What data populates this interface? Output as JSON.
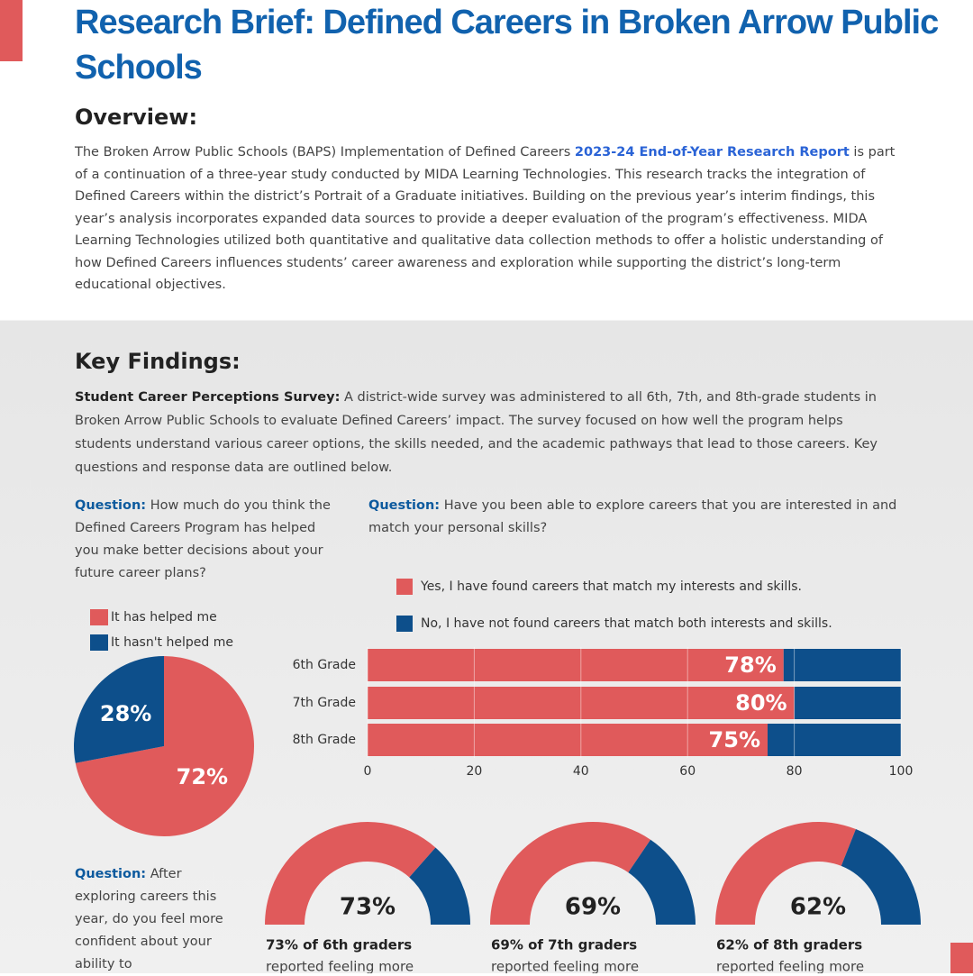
{
  "header": {
    "title": "Research Brief: Defined Careers in Broken Arrow Public Schools"
  },
  "overview": {
    "heading": "Overview:",
    "text_before_link": "The Broken Arrow Public Schools (BAPS) Implementation of Defined Careers ",
    "link": "2023-24 End-of-Year Research Report",
    "text_after_link": " is part of a continuation of a three-year study conducted by MIDA Learning Technologies. This research tracks the integration of Defined Careers within the district’s Portrait of a Graduate initiatives. Building on the previous year’s interim findings, this year’s analysis incorporates expanded data sources to provide a deeper evaluation of the program’s effectiveness. MIDA Learning Technologies utilized both quantitative and qualitative data collection methods to offer a holistic understanding of how Defined Careers influences students’ career awareness and exploration while supporting the district’s long-term educational objectives."
  },
  "key_findings": {
    "heading": "Key Findings:",
    "lead": "Student Career Perceptions Survey:",
    "text": " A district-wide survey was administered to all 6th, 7th, and 8th-grade students in Broken Arrow Public Schools to evaluate Defined Careers’ impact. The survey focused on how well the program helps students understand various career options, the skills needed, and the academic pathways that lead to those careers. Key questions and response data are outlined below."
  },
  "questions": [
    {
      "label": "Question:",
      "text": " How much do you think the Defined Careers Program has helped you make better decisions about your future career plans?"
    },
    {
      "label": "Question:",
      "text": " Have you been able to explore careers that you are interested in and match your personal skills?"
    },
    {
      "label": "Question:",
      "text": " After exploring careers this year, do you feel more confident about your ability to"
    }
  ],
  "chart_data": [
    {
      "type": "pie",
      "categories": [
        "It has helped me",
        "It hasn't helped me"
      ],
      "values": [
        72,
        28
      ],
      "value_labels": [
        "72%",
        "28%"
      ],
      "colors": [
        "#e05a5b",
        "#0d4f8b"
      ]
    },
    {
      "type": "bar",
      "orientation": "horizontal",
      "stacked": true,
      "categories": [
        "6th Grade",
        "7th Grade",
        "8th Grade"
      ],
      "series": [
        {
          "name": "Yes, I have found careers that match my interests and skills.",
          "color": "#e05a5b",
          "values": [
            78,
            80,
            75
          ],
          "value_labels": [
            "78%",
            "80%",
            "75%"
          ]
        },
        {
          "name": "No, I have not found careers that match both interests and skills.",
          "color": "#0d4f8b",
          "values": [
            22,
            20,
            25
          ]
        }
      ],
      "xlim": [
        0,
        100
      ],
      "xticks": [
        0,
        20,
        40,
        60,
        80,
        100
      ],
      "grid": true
    },
    {
      "type": "gauge",
      "values": [
        73,
        69,
        62
      ],
      "value_labels": [
        "73%",
        "69%",
        "62%"
      ],
      "ylim": [
        0,
        100
      ],
      "colors": [
        "#e05a5b",
        "#0d4f8b"
      ],
      "captions": [
        "73% of 6th graders",
        "69% of 7th graders",
        "62% of 8th graders"
      ],
      "caption_notes": [
        "reported feeling more",
        "reported feeling more",
        "reported feeling more"
      ]
    }
  ]
}
